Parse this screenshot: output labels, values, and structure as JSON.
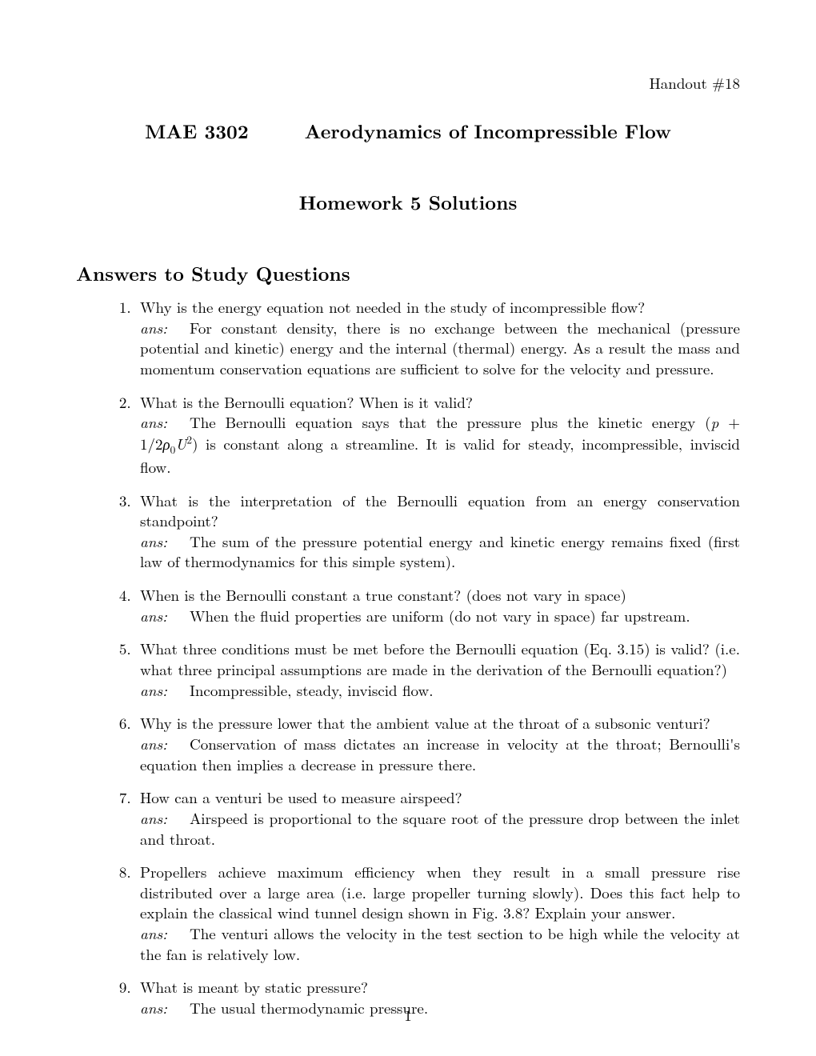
{
  "header": {
    "handout": "Handout #18",
    "course_code": "MAE 3302",
    "course_title": "Aerodynamics of Incompressible Flow",
    "hw_title": "Homework 5 Solutions",
    "section_title": "Answers to Study Questions"
  },
  "ans_label": "ans:",
  "questions": [
    {
      "q": "Why is the energy equation not needed in the study of incompressible flow?",
      "a": "For constant density, there is no exchange between the mechanical (pressure potential and kinetic) energy and the internal (thermal) energy. As a result the mass and momentum conservation equations are sufficient to solve for the velocity and pressure."
    },
    {
      "q": "What is the Bernoulli equation? When is it valid?",
      "a_pre": "The Bernoulli equation says that the pressure plus the kinetic energy (",
      "a_math": "p + 1/2ρ₀U²",
      "a_post": ") is constant along a streamline. It is valid for steady, incompressible, inviscid flow."
    },
    {
      "q": "What is the interpretation of the Bernoulli equation from an energy conservation standpoint?",
      "a": "The sum of the pressure potential energy and kinetic energy remains fixed (first law of thermodynamics for this simple system)."
    },
    {
      "q": "When is the Bernoulli constant a true constant? (does not vary in space)",
      "a": "When the fluid properties are uniform (do not vary in space) far upstream."
    },
    {
      "q": "What three conditions must be met before the Bernoulli equation (Eq. 3.15) is valid? (i.e. what three principal assumptions are made in the derivation of the Bernoulli equation?)",
      "a": "Incompressible, steady, inviscid flow."
    },
    {
      "q": "Why is the pressure lower that the ambient value at the throat of a subsonic venturi?",
      "a": "Conservation of mass dictates an increase in velocity at the throat; Bernoulli's equation then implies a decrease in pressure there."
    },
    {
      "q": "How can a venturi be used to measure airspeed?",
      "a": "Airspeed is proportional to the square root of the pressure drop between the inlet and throat."
    },
    {
      "q": "Propellers achieve maximum efficiency when they result in a small pressure rise distributed over a large area (i.e. large propeller turning slowly). Does this fact help to explain the classical wind tunnel design shown in Fig. 3.8? Explain your answer.",
      "a": "The venturi allows the velocity in the test section to be high while the velocity at the fan is relatively low."
    },
    {
      "q": "What is meant by static pressure?",
      "a": "The usual thermodynamic pressure."
    }
  ],
  "page_number": "1"
}
